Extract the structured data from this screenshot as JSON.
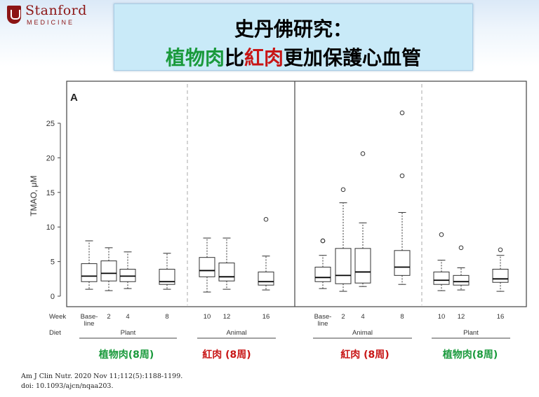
{
  "logo": {
    "name": "Stanford",
    "sub": "MEDICINE"
  },
  "title": {
    "line1": "史丹佛研究：",
    "line2_a": "植物肉",
    "line2_b": "比",
    "line2_c": "紅肉",
    "line2_d": "更加保護心血管"
  },
  "colors": {
    "green": "#1a9a3c",
    "red": "#c81616",
    "box": "#333333"
  },
  "captions": [
    "植物肉(8周)",
    "紅肉 (8周)",
    "紅肉 (8周)",
    "植物肉(8周)"
  ],
  "reference": {
    "line1": "Am J Clin Nutr. 2020 Nov 11;112(5):1188-1199.",
    "line2": "doi: 10.1093/ajcn/nqaa203."
  },
  "chart_data": {
    "type": "boxplot",
    "panel_label": "A",
    "ylabel": "TMAO, μM",
    "ylim": [
      0,
      30
    ],
    "yticks": [
      0,
      5,
      10,
      15,
      20,
      25
    ],
    "row_labels": {
      "week": "Week",
      "diet": "Diet"
    },
    "panels": [
      {
        "groups": [
          {
            "diet": "Plant",
            "boxes": [
              {
                "week": "Base-line",
                "whisker_low": 1.0,
                "q1": 2.1,
                "median": 2.9,
                "q3": 4.7,
                "whisker_high": 8.0,
                "outliers": []
              },
              {
                "week": "2",
                "whisker_low": 0.8,
                "q1": 2.2,
                "median": 3.3,
                "q3": 5.1,
                "whisker_high": 7.0,
                "outliers": []
              },
              {
                "week": "4",
                "whisker_low": 1.1,
                "q1": 2.1,
                "median": 2.9,
                "q3": 3.9,
                "whisker_high": 6.4,
                "outliers": []
              },
              {
                "week": "8",
                "whisker_low": 1.0,
                "q1": 1.7,
                "median": 2.1,
                "q3": 3.9,
                "whisker_high": 6.2,
                "outliers": []
              }
            ]
          },
          {
            "diet": "Animal",
            "boxes": [
              {
                "week": "10",
                "whisker_low": 0.6,
                "q1": 2.8,
                "median": 3.7,
                "q3": 5.6,
                "whisker_high": 8.4,
                "outliers": []
              },
              {
                "week": "12",
                "whisker_low": 1.0,
                "q1": 2.2,
                "median": 2.8,
                "q3": 4.8,
                "whisker_high": 8.4,
                "outliers": []
              },
              {
                "week": "16",
                "whisker_low": 0.9,
                "q1": 1.6,
                "median": 2.1,
                "q3": 3.5,
                "whisker_high": 5.8,
                "outliers": [
                  11.1
                ]
              }
            ]
          }
        ]
      },
      {
        "groups": [
          {
            "diet": "Animal",
            "boxes": [
              {
                "week": "Base-line",
                "whisker_low": 1.1,
                "q1": 2.1,
                "median": 2.7,
                "q3": 4.2,
                "whisker_high": 5.9,
                "outliers": [
                  8.0,
                  8.0
                ]
              },
              {
                "week": "2",
                "whisker_low": 0.7,
                "q1": 1.8,
                "median": 3.0,
                "q3": 6.9,
                "whisker_high": 13.5,
                "outliers": [
                  15.4
                ]
              },
              {
                "week": "4",
                "whisker_low": 1.4,
                "q1": 1.9,
                "median": 3.5,
                "q3": 6.9,
                "whisker_high": 10.6,
                "outliers": [
                  20.6
                ]
              },
              {
                "week": "8",
                "whisker_low": 1.7,
                "q1": 3.0,
                "median": 4.2,
                "q3": 6.6,
                "whisker_high": 12.1,
                "outliers": [
                  17.4,
                  26.5
                ]
              }
            ]
          },
          {
            "diet": "Plant",
            "boxes": [
              {
                "week": "10",
                "whisker_low": 0.8,
                "q1": 1.7,
                "median": 2.3,
                "q3": 3.5,
                "whisker_high": 5.2,
                "outliers": [
                  8.9
                ]
              },
              {
                "week": "12",
                "whisker_low": 0.9,
                "q1": 1.6,
                "median": 2.1,
                "q3": 3.0,
                "whisker_high": 4.1,
                "outliers": [
                  7.0
                ]
              },
              {
                "week": "16",
                "whisker_low": 0.7,
                "q1": 2.0,
                "median": 2.5,
                "q3": 3.9,
                "whisker_high": 5.9,
                "outliers": [
                  6.7
                ]
              }
            ]
          }
        ]
      }
    ]
  }
}
